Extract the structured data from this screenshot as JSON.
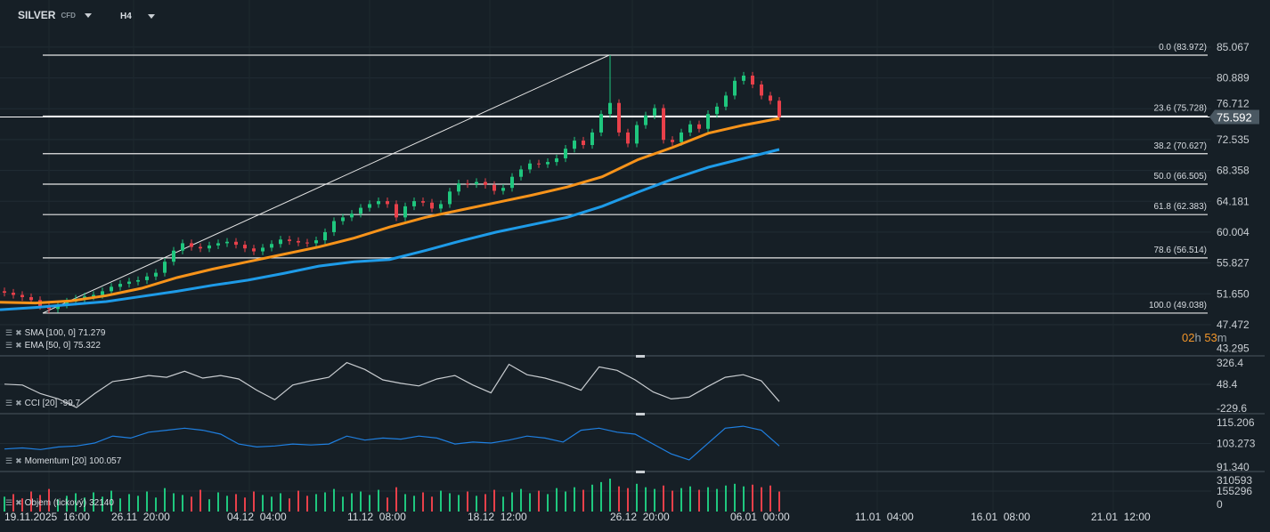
{
  "header": {
    "symbol": "SILVER",
    "symbol_type": "CFD",
    "timeframe": "H4"
  },
  "countdown": {
    "hours": "02",
    "h_unit": "h",
    "minutes": "53",
    "m_unit": "m"
  },
  "colors": {
    "background": "#161f26",
    "up": "#1fc77e",
    "down": "#e8404a",
    "ema": "#f7931a",
    "sma": "#1e9be8",
    "cci": "#c8ccd0",
    "momentum": "#1f7fe0",
    "fib": "#e6e6e6",
    "last_price_tag": "#4a5862"
  },
  "legend": {
    "sma": {
      "label": "SMA [100,  0]",
      "value": "71.279"
    },
    "ema": {
      "label": "EMA [50, 0]",
      "value": "75.322"
    },
    "cci": {
      "label": "CCI [20]",
      "value": "-99.7"
    },
    "momentum": {
      "label": "Momentum  [20]",
      "value": "100.057"
    },
    "volume": {
      "label": "Objem  (tickový)",
      "value": "32140"
    }
  },
  "chart_data": {
    "type": "candlestick",
    "price_axis": {
      "range": [
        43.295,
        85.067
      ],
      "ticks": [
        "85.067",
        "80.889",
        "76.712",
        "72.535",
        "68.358",
        "64.181",
        "60.004",
        "55.827",
        "51.650",
        "47.472",
        "43.295"
      ]
    },
    "last_price": "75.592",
    "time_axis": {
      "ticks": [
        "19.11.2025  16:00",
        "26.11  20:00",
        "04.12  04:00",
        "11.12  08:00",
        "18.12  12:00",
        "26.12  20:00",
        "06.01  00:00",
        "11.01  04:00",
        "16.01  08:00",
        "21.01  12:00"
      ]
    },
    "closes": [
      51.8,
      51.5,
      51.2,
      50.8,
      50.0,
      49.6,
      50.2,
      50.6,
      51.0,
      51.3,
      51.5,
      52.0,
      52.6,
      53.0,
      53.3,
      53.5,
      54.0,
      54.5,
      56.0,
      57.5,
      58.5,
      58.0,
      57.8,
      58.2,
      58.5,
      58.7,
      58.3,
      57.8,
      57.4,
      57.9,
      58.4,
      59.0,
      58.8,
      58.6,
      58.5,
      58.9,
      60.0,
      61.5,
      62.0,
      62.5,
      63.3,
      63.8,
      64.2,
      63.8,
      62.0,
      63.5,
      64.2,
      64.0,
      63.2,
      63.8,
      65.5,
      66.6,
      66.5,
      66.8,
      66.4,
      65.6,
      66.0,
      67.5,
      68.5,
      69.3,
      69.2,
      69.5,
      70.0,
      71.3,
      72.4,
      71.8,
      73.5,
      76.0,
      77.5,
      73.5,
      72.0,
      74.5,
      75.8,
      76.8,
      72.5,
      72.2,
      73.5,
      74.6,
      74.0,
      76.0,
      77.0,
      78.5,
      80.5,
      81.2,
      80.0,
      78.5,
      77.8,
      75.6
    ],
    "swing_high": 83.972,
    "swing_low": 49.038,
    "ema50": [
      50.5,
      50.4,
      50.7,
      51.4,
      52.4,
      53.85,
      55.0,
      56.0,
      57.0,
      58.0,
      59.2,
      60.7,
      62.0,
      63.0,
      64.0,
      65.0,
      66.1,
      67.5,
      69.8,
      71.5,
      73.4,
      74.5,
      75.4
    ],
    "sma100": [
      49.5,
      49.8,
      50.2,
      50.6,
      51.3,
      52.0,
      52.8,
      53.5,
      54.4,
      55.4,
      56.0,
      56.3,
      57.5,
      58.8,
      60.0,
      61.0,
      62.0,
      63.5,
      65.4,
      67.2,
      68.8,
      70.0,
      71.2
    ],
    "fibonacci": [
      {
        "level": "0.0",
        "price": 83.972,
        "label": "0.0 (83.972)"
      },
      {
        "level": "23.6",
        "price": 75.728,
        "label": "23.6 (75.728)"
      },
      {
        "level": "38.2",
        "price": 70.627,
        "label": "38.2 (70.627)"
      },
      {
        "level": "50.0",
        "price": 66.505,
        "label": "50.0 (66.505)"
      },
      {
        "level": "61.8",
        "price": 62.383,
        "label": "61.8 (62.383)"
      },
      {
        "level": "78.6",
        "price": 56.514,
        "label": "78.6 (56.514)"
      },
      {
        "level": "100.0",
        "price": 49.038,
        "label": "100.0 (49.038)"
      }
    ],
    "cci": {
      "range": [
        -229.6,
        326.4
      ],
      "ticks": [
        "326.4",
        "48.4",
        "-229.6"
      ],
      "values": [
        50,
        40,
        -60,
        -120,
        -220,
        -60,
        80,
        110,
        150,
        130,
        200,
        120,
        150,
        110,
        -20,
        -130,
        40,
        90,
        130,
        300,
        220,
        100,
        60,
        30,
        110,
        150,
        40,
        -50,
        280,
        160,
        120,
        60,
        -20,
        250,
        210,
        100,
        -40,
        -120,
        -100,
        20,
        130,
        160,
        90,
        -150
      ]
    },
    "momentum": {
      "range": [
        91.34,
        115.206
      ],
      "ticks": [
        "115.206",
        "103.273",
        "91.340"
      ],
      "values": [
        100.5,
        101,
        100.2,
        101.5,
        102,
        103.5,
        107,
        106,
        109,
        110,
        111,
        110,
        108,
        103,
        101.5,
        102,
        103,
        102.5,
        103,
        107,
        105,
        106,
        105.5,
        107,
        106,
        103,
        104,
        103.5,
        105,
        107,
        106,
        104,
        110,
        111,
        109,
        108,
        103,
        98,
        95,
        103,
        111,
        112,
        110,
        102
      ]
    },
    "volume": {
      "range": [
        0,
        310593
      ],
      "ticks": [
        "310593",
        "155296",
        "0"
      ],
      "values": [
        90000,
        120000,
        70000,
        150000,
        110000,
        180000,
        60000,
        100000,
        130000,
        80000,
        140000,
        90000,
        160000,
        70000,
        120000,
        100000,
        150000,
        80000,
        190000,
        130000,
        110000,
        90000,
        170000,
        60000,
        140000,
        100000,
        120000,
        80000,
        150000,
        110000,
        90000,
        130000,
        70000,
        160000,
        100000,
        120000,
        140000,
        180000,
        90000,
        130000,
        150000,
        110000,
        170000,
        80000,
        200000,
        120000,
        100000,
        140000,
        90000,
        160000,
        130000,
        110000,
        150000,
        100000,
        120000,
        170000,
        90000,
        140000,
        180000,
        130000,
        160000,
        120000,
        190000,
        150000,
        200000,
        170000,
        230000,
        260000,
        300000,
        210000,
        190000,
        240000,
        200000,
        180000,
        220000,
        160000,
        190000,
        210000,
        170000,
        200000,
        180000,
        220000,
        240000,
        210000,
        230000,
        200000,
        220000,
        150000
      ]
    }
  }
}
